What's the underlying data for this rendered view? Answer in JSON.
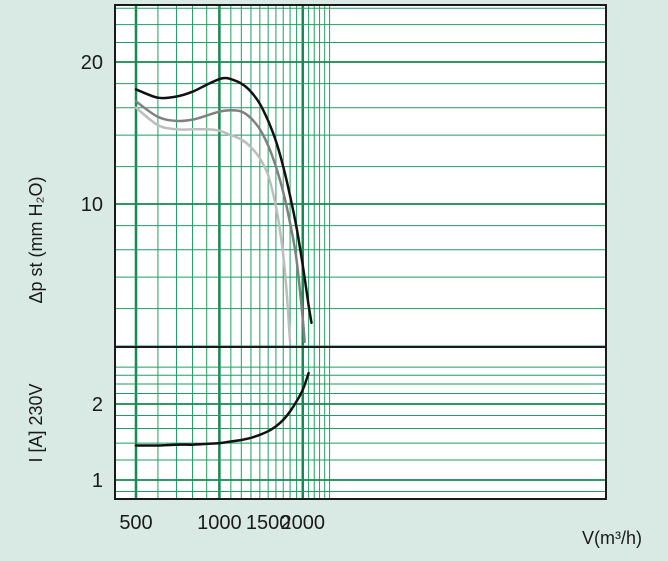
{
  "colors": {
    "background": "#d9e9e4",
    "plot_area": "#ffffff",
    "grid_minor": "#1e9e62",
    "grid_major": "#138a50",
    "frame": "#1a1a1a"
  },
  "chart_data": [
    {
      "type": "line",
      "ylabel": "Δp st (mm H₂O)",
      "y_ticks": [
        "20",
        "10"
      ],
      "xlim": [
        480,
        2500
      ],
      "ylim": [
        5.0,
        26
      ],
      "grid": true,
      "series": [
        {
          "color": "#111111",
          "x": [
            500,
            600,
            700,
            800,
            900,
            1000,
            1050,
            1100,
            1200,
            1300,
            1400,
            1500,
            1600,
            1700,
            1800,
            1900,
            2000,
            2100,
            2150
          ],
          "y": [
            17.5,
            16.8,
            16.9,
            17.3,
            17.9,
            18.4,
            18.5,
            18.4,
            18.0,
            17.3,
            16.3,
            15.0,
            13.6,
            12.0,
            10.4,
            8.9,
            7.4,
            6.1,
            5.6
          ]
        },
        {
          "color": "#808080",
          "x": [
            500,
            600,
            700,
            800,
            900,
            1000,
            1100,
            1200,
            1300,
            1400,
            1500,
            1600,
            1700,
            1800,
            1900,
            2000,
            2030
          ],
          "y": [
            16.5,
            15.3,
            15.0,
            15.1,
            15.4,
            15.7,
            15.8,
            15.7,
            15.2,
            14.4,
            13.3,
            12.0,
            10.6,
            9.1,
            7.6,
            5.7,
            5.1
          ]
        },
        {
          "color": "#bdbdbd",
          "x": [
            500,
            600,
            700,
            800,
            900,
            1000,
            1100,
            1200,
            1300,
            1400,
            1500,
            1600,
            1650,
            1700,
            1750,
            1800
          ],
          "y": [
            16.0,
            14.7,
            14.4,
            14.4,
            14.4,
            14.3,
            14.0,
            13.7,
            13.2,
            12.5,
            11.5,
            9.9,
            8.9,
            7.8,
            6.5,
            5.1
          ]
        }
      ]
    },
    {
      "type": "line",
      "ylabel": "I [A] 230V",
      "xlabel": "V(m³/h)",
      "x_ticks": [
        "500",
        "1000",
        "1500",
        "2000"
      ],
      "y_ticks": [
        "2",
        "1"
      ],
      "xlim": [
        480,
        2500
      ],
      "ylim": [
        0.9,
        2.9
      ],
      "grid": true,
      "series": [
        {
          "color": "#111111",
          "x": [
            500,
            600,
            700,
            800,
            900,
            1000,
            1100,
            1200,
            1300,
            1400,
            1500,
            1600,
            1700,
            1800,
            1900,
            2000,
            2100
          ],
          "y": [
            1.37,
            1.37,
            1.38,
            1.38,
            1.39,
            1.4,
            1.42,
            1.44,
            1.47,
            1.51,
            1.56,
            1.63,
            1.73,
            1.87,
            2.05,
            2.28,
            2.65
          ]
        }
      ]
    }
  ]
}
